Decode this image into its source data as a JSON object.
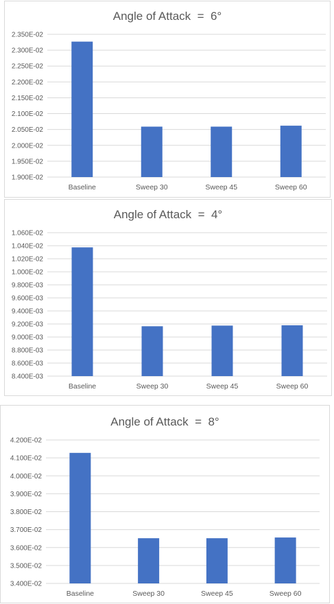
{
  "colors": {
    "bar": "#4472c4",
    "grid": "#d9d9d9",
    "text": "#595959"
  },
  "chart_data": [
    {
      "type": "bar",
      "title": "Angle of Attack  =  6°",
      "categories": [
        "Baseline",
        "Sweep 30",
        "Sweep 45",
        "Sweep 60"
      ],
      "values": [
        0.02327,
        0.02059,
        0.02059,
        0.02062
      ],
      "ylim": [
        0.019,
        0.0235
      ],
      "yticks": [
        "1.900E-02",
        "1.950E-02",
        "2.000E-02",
        "2.050E-02",
        "2.100E-02",
        "2.150E-02",
        "2.200E-02",
        "2.250E-02",
        "2.300E-02",
        "2.350E-02"
      ],
      "grid": true,
      "legend": "none"
    },
    {
      "type": "bar",
      "title": "Angle of Attack  =  4°",
      "categories": [
        "Baseline",
        "Sweep 30",
        "Sweep 45",
        "Sweep 60"
      ],
      "values": [
        0.010375,
        0.009165,
        0.009175,
        0.00918
      ],
      "ylim": [
        0.0084,
        0.0106
      ],
      "yticks": [
        "8.400E-03",
        "8.600E-03",
        "8.800E-03",
        "9.000E-03",
        "9.200E-03",
        "9.400E-03",
        "9.600E-03",
        "9.800E-03",
        "1.000E-02",
        "1.020E-02",
        "1.040E-02",
        "1.060E-02"
      ],
      "grid": true,
      "legend": "none"
    },
    {
      "type": "bar",
      "title": "Angle of Attack  =  8°",
      "categories": [
        "Baseline",
        "Sweep 30",
        "Sweep 45",
        "Sweep 60"
      ],
      "values": [
        0.04128,
        0.03652,
        0.03652,
        0.03656
      ],
      "ylim": [
        0.034,
        0.042
      ],
      "yticks": [
        "3.400E-02",
        "3.500E-02",
        "3.600E-02",
        "3.700E-02",
        "3.800E-02",
        "3.900E-02",
        "4.000E-02",
        "4.100E-02",
        "4.200E-02"
      ],
      "grid": true,
      "legend": "none"
    }
  ]
}
